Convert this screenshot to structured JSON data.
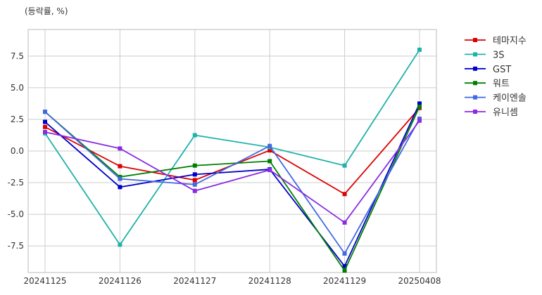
{
  "chart_data": {
    "type": "line",
    "title": "",
    "unit_label": "(등락률, %)",
    "xlabel": "",
    "ylabel": "",
    "categories": [
      "20241125",
      "20241126",
      "20241127",
      "20241128",
      "20241129",
      "20250408"
    ],
    "yticks": [
      -7.5,
      -5.0,
      -2.5,
      0.0,
      2.5,
      5.0,
      7.5
    ],
    "ytick_labels": [
      "-7.5",
      "-5.0",
      "-2.5",
      "0.0",
      "2.5",
      "5.0",
      "7.5"
    ],
    "ylim": [
      -9.6,
      9.6
    ],
    "grid": true,
    "legend_position": "outside-right",
    "marker": "square",
    "series": [
      {
        "name": "테마지수",
        "color": "#dd0000",
        "values": [
          1.9,
          -1.2,
          -2.3,
          0.05,
          -3.4,
          3.4
        ]
      },
      {
        "name": "3S",
        "color": "#20b2aa",
        "values": [
          1.4,
          -7.4,
          1.25,
          0.3,
          -1.15,
          8.0
        ]
      },
      {
        "name": "GST",
        "color": "#0000cc",
        "values": [
          2.3,
          -2.85,
          -1.85,
          -1.45,
          -9.1,
          3.75
        ]
      },
      {
        "name": "워트",
        "color": "#008000",
        "values": [
          3.1,
          -2.05,
          -1.15,
          -0.8,
          -9.45,
          3.5
        ]
      },
      {
        "name": "케이엔솔",
        "color": "#4169e1",
        "values": [
          3.1,
          -2.2,
          -2.65,
          0.4,
          -8.1,
          2.55
        ]
      },
      {
        "name": "유니셈",
        "color": "#8a2be2",
        "values": [
          1.5,
          0.2,
          -3.15,
          -1.5,
          -5.65,
          2.4
        ]
      }
    ]
  }
}
